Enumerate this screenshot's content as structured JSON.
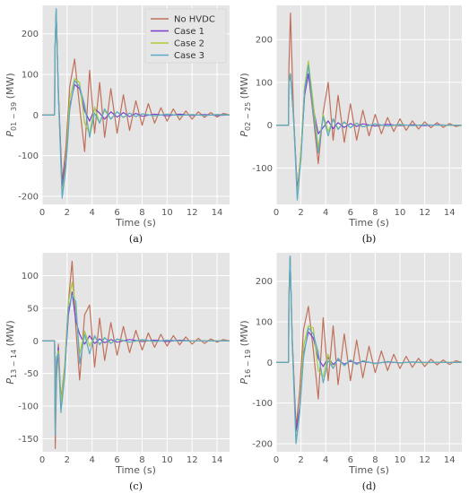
{
  "colors": {
    "No HVDC": "#c0705a",
    "Case 1": "#7a3fd0",
    "Case 2": "#a8cc3a",
    "Case 3": "#5aaac8",
    "plot_bg": "#e5e5e5",
    "grid": "#ffffff"
  },
  "chart_data": [
    {
      "type": "line",
      "caption": "(a)",
      "xlabel": "Time (s)",
      "ylabel_main": "P",
      "ylabel_sub": "01 − 39",
      "ylabel_unit": " (MW)",
      "xlim": [
        0,
        15
      ],
      "ylim": [
        -220,
        270
      ],
      "xticks": [
        0,
        2,
        4,
        6,
        8,
        10,
        12,
        14
      ],
      "yticks": [
        -200,
        -100,
        0,
        100,
        200
      ],
      "legend": {
        "position": "top-right",
        "entries": [
          "No HVDC",
          "Case 1",
          "Case 2",
          "Case 3"
        ]
      },
      "series": [
        {
          "name": "No HVDC",
          "x": [
            0,
            1,
            1.02,
            1.12,
            1.3,
            1.6,
            1.9,
            2.2,
            2.6,
            3.0,
            3.4,
            3.8,
            4.2,
            4.6,
            5.0,
            5.5,
            6.0,
            6.5,
            7.0,
            7.5,
            8.0,
            8.5,
            9.0,
            9.5,
            10.0,
            10.5,
            11.0,
            11.5,
            12.0,
            12.5,
            13.0,
            13.5,
            14.0,
            14.5,
            15.0
          ],
          "y": [
            0,
            0,
            150,
            258,
            60,
            -165,
            -80,
            70,
            138,
            20,
            -90,
            110,
            -45,
            80,
            -55,
            65,
            -45,
            50,
            -38,
            35,
            -25,
            28,
            -20,
            18,
            -15,
            15,
            -12,
            10,
            -10,
            8,
            -6,
            6,
            -5,
            4,
            0
          ]
        },
        {
          "name": "Case 1",
          "x": [
            0,
            1,
            1.02,
            1.12,
            1.3,
            1.6,
            1.9,
            2.2,
            2.6,
            3.0,
            3.4,
            3.8,
            4.2,
            4.6,
            5.0,
            5.5,
            6.0,
            6.5,
            7.0,
            7.5,
            8.0,
            9.0,
            10.0,
            11.0,
            12.0,
            13.0,
            14.0,
            15.0
          ],
          "y": [
            0,
            0,
            150,
            258,
            50,
            -175,
            -110,
            20,
            75,
            65,
            10,
            -15,
            15,
            5,
            -10,
            8,
            -5,
            6,
            -4,
            4,
            -3,
            2,
            -2,
            2,
            -1,
            1,
            -1,
            0
          ]
        },
        {
          "name": "Case 2",
          "x": [
            0,
            1,
            1.02,
            1.12,
            1.3,
            1.6,
            1.9,
            2.2,
            2.6,
            3.0,
            3.4,
            3.8,
            4.2,
            4.6,
            5.0,
            5.5,
            6.0,
            6.5,
            7.0,
            7.5,
            8.0,
            9.0,
            10.0,
            11.0,
            12.0,
            13.0,
            14.0,
            15.0
          ],
          "y": [
            0,
            0,
            150,
            258,
            50,
            -195,
            -120,
            40,
            90,
            80,
            -20,
            -45,
            20,
            -20,
            12,
            -10,
            8,
            -6,
            5,
            -4,
            3,
            -2,
            2,
            -1,
            1,
            -1,
            1,
            0
          ]
        },
        {
          "name": "Case 3",
          "x": [
            0,
            1,
            1.02,
            1.12,
            1.3,
            1.6,
            1.9,
            2.2,
            2.6,
            3.0,
            3.4,
            3.8,
            4.2,
            4.6,
            5.0,
            5.5,
            6.0,
            6.5,
            7.0,
            7.5,
            8.0,
            9.0,
            10.0,
            11.0,
            12.0,
            13.0,
            14.0,
            15.0
          ],
          "y": [
            0,
            0,
            150,
            262,
            50,
            -205,
            -130,
            10,
            85,
            70,
            25,
            -55,
            5,
            -20,
            15,
            -10,
            8,
            -6,
            5,
            -4,
            3,
            -2,
            2,
            -1,
            1,
            -1,
            1,
            0
          ]
        }
      ]
    },
    {
      "type": "line",
      "caption": "(b)",
      "xlabel": "Time (s)",
      "ylabel_main": "P",
      "ylabel_sub": "02 − 25",
      "ylabel_unit": " (MW)",
      "xlim": [
        0,
        15
      ],
      "ylim": [
        -185,
        280
      ],
      "xticks": [
        0,
        2,
        4,
        6,
        8,
        10,
        12,
        14
      ],
      "yticks": [
        -100,
        0,
        100,
        200
      ],
      "series": [
        {
          "name": "No HVDC",
          "x": [
            0,
            1,
            1.02,
            1.15,
            1.4,
            1.7,
            2.0,
            2.3,
            2.6,
            3.0,
            3.4,
            3.8,
            4.2,
            4.6,
            5.0,
            5.5,
            6.0,
            6.5,
            7.0,
            7.5,
            8.0,
            8.5,
            9.0,
            9.5,
            10.0,
            10.5,
            11.0,
            11.5,
            12.0,
            12.5,
            13.0,
            13.5,
            14.0,
            14.5,
            15.0
          ],
          "y": [
            0,
            0,
            130,
            262,
            30,
            -160,
            -60,
            90,
            120,
            20,
            -90,
            30,
            100,
            -35,
            70,
            -40,
            50,
            -35,
            35,
            -25,
            25,
            -20,
            18,
            -15,
            15,
            -12,
            10,
            -9,
            8,
            -6,
            6,
            -5,
            4,
            -3,
            0
          ]
        },
        {
          "name": "Case 1",
          "x": [
            0,
            1,
            1.02,
            1.15,
            1.4,
            1.7,
            2.0,
            2.3,
            2.6,
            3.0,
            3.4,
            3.8,
            4.2,
            4.6,
            5.0,
            5.5,
            6.0,
            6.5,
            7.0,
            8.0,
            9.0,
            10.0,
            11.0,
            12.0,
            13.0,
            14.0,
            15.0
          ],
          "y": [
            0,
            0,
            100,
            120,
            20,
            -150,
            -70,
            70,
            120,
            40,
            -20,
            -5,
            10,
            -8,
            6,
            -5,
            4,
            -3,
            3,
            -2,
            2,
            -1,
            1,
            -1,
            1,
            0,
            0
          ]
        },
        {
          "name": "Case 2",
          "x": [
            0,
            1,
            1.02,
            1.15,
            1.4,
            1.7,
            2.0,
            2.3,
            2.6,
            3.0,
            3.4,
            3.8,
            4.2,
            4.6,
            5.0,
            5.5,
            6.0,
            6.5,
            7.0,
            8.0,
            9.0,
            10.0,
            11.0,
            12.0,
            13.0,
            14.0,
            15.0
          ],
          "y": [
            0,
            0,
            100,
            120,
            20,
            -165,
            -60,
            90,
            150,
            50,
            -55,
            25,
            -15,
            12,
            -8,
            6,
            -5,
            4,
            -3,
            2,
            -2,
            1,
            -1,
            1,
            0,
            0,
            0
          ]
        },
        {
          "name": "Case 3",
          "x": [
            0,
            1,
            1.02,
            1.15,
            1.4,
            1.7,
            2.0,
            2.3,
            2.6,
            3.0,
            3.4,
            3.8,
            4.2,
            4.6,
            5.0,
            5.5,
            6.0,
            6.5,
            7.0,
            8.0,
            9.0,
            10.0,
            11.0,
            12.0,
            13.0,
            14.0,
            15.0
          ],
          "y": [
            0,
            0,
            100,
            120,
            20,
            -175,
            -80,
            80,
            140,
            30,
            -65,
            20,
            -25,
            15,
            -10,
            8,
            -6,
            5,
            -4,
            3,
            -2,
            2,
            -1,
            1,
            0,
            0,
            0
          ]
        }
      ]
    },
    {
      "type": "line",
      "caption": "(c)",
      "xlabel": "Time (s)",
      "ylabel_main": "P",
      "ylabel_sub": "13 − 14",
      "ylabel_unit": " (MW)",
      "xlim": [
        0,
        15
      ],
      "ylim": [
        -170,
        135
      ],
      "xticks": [
        0,
        2,
        4,
        6,
        8,
        10,
        12,
        14
      ],
      "yticks": [
        -150,
        -100,
        -50,
        0,
        50,
        100
      ],
      "series": [
        {
          "name": "No HVDC",
          "x": [
            0,
            1,
            1.05,
            1.15,
            1.3,
            1.5,
            1.8,
            2.1,
            2.4,
            2.7,
            3.0,
            3.4,
            3.8,
            4.2,
            4.6,
            5.0,
            5.5,
            6.0,
            6.5,
            7.0,
            7.5,
            8.0,
            8.5,
            9.0,
            9.5,
            10.0,
            10.5,
            11.0,
            11.5,
            12.0,
            12.5,
            13.0,
            13.5,
            14.0,
            14.5,
            15.0
          ],
          "y": [
            0,
            0,
            -165,
            -60,
            -5,
            -90,
            -40,
            60,
            122,
            20,
            -60,
            40,
            55,
            -40,
            35,
            -30,
            28,
            -22,
            22,
            -18,
            16,
            -14,
            12,
            -10,
            10,
            -8,
            8,
            -6,
            6,
            -5,
            4,
            -4,
            3,
            -2,
            2,
            0
          ]
        },
        {
          "name": "Case 1",
          "x": [
            0,
            1,
            1.05,
            1.15,
            1.3,
            1.5,
            1.8,
            2.1,
            2.4,
            2.7,
            3.0,
            3.4,
            3.8,
            4.2,
            4.6,
            5.0,
            5.5,
            6.0,
            7.0,
            8.0,
            9.0,
            10.0,
            11.0,
            12.0,
            13.0,
            14.0,
            15.0
          ],
          "y": [
            0,
            0,
            -130,
            -40,
            -10,
            -100,
            -50,
            40,
            75,
            30,
            10,
            -5,
            8,
            -4,
            3,
            -3,
            2,
            -2,
            2,
            -1,
            1,
            -1,
            1,
            0,
            0,
            0,
            0
          ]
        },
        {
          "name": "Case 2",
          "x": [
            0,
            1,
            1.05,
            1.15,
            1.3,
            1.5,
            1.8,
            2.1,
            2.4,
            2.7,
            3.0,
            3.4,
            3.8,
            4.2,
            4.6,
            5.0,
            5.5,
            6.0,
            7.0,
            8.0,
            9.0,
            10.0,
            11.0,
            12.0,
            13.0,
            14.0,
            15.0
          ],
          "y": [
            0,
            0,
            -140,
            -30,
            -15,
            -95,
            -45,
            60,
            90,
            50,
            -20,
            15,
            -8,
            6,
            -5,
            4,
            -3,
            2,
            -2,
            1,
            -1,
            1,
            0,
            0,
            0,
            0,
            0
          ]
        },
        {
          "name": "Case 3",
          "x": [
            0,
            1,
            1.05,
            1.15,
            1.3,
            1.5,
            1.8,
            2.1,
            2.4,
            2.7,
            3.0,
            3.4,
            3.8,
            4.2,
            4.6,
            5.0,
            5.5,
            6.0,
            7.0,
            8.0,
            9.0,
            10.0,
            11.0,
            12.0,
            13.0,
            14.0,
            15.0
          ],
          "y": [
            0,
            0,
            -145,
            -25,
            -20,
            -110,
            -55,
            50,
            70,
            60,
            -35,
            10,
            -20,
            8,
            -6,
            5,
            -4,
            3,
            -2,
            2,
            -1,
            1,
            0,
            0,
            0,
            0,
            0
          ]
        }
      ]
    },
    {
      "type": "line",
      "caption": "(d)",
      "xlabel": "Time (s)",
      "ylabel_main": "P",
      "ylabel_sub": "16 − 19",
      "ylabel_unit": " (MW)",
      "xlim": [
        0,
        15
      ],
      "ylim": [
        -220,
        270
      ],
      "xticks": [
        0,
        2,
        4,
        6,
        8,
        10,
        12,
        14
      ],
      "yticks": [
        -200,
        -100,
        0,
        100,
        200
      ],
      "series": [
        {
          "name": "No HVDC",
          "x": [
            0,
            1,
            1.02,
            1.12,
            1.3,
            1.6,
            1.9,
            2.2,
            2.6,
            3.0,
            3.4,
            3.8,
            4.2,
            4.6,
            5.0,
            5.5,
            6.0,
            6.5,
            7.0,
            7.5,
            8.0,
            8.5,
            9.0,
            9.5,
            10.0,
            10.5,
            11.0,
            11.5,
            12.0,
            12.5,
            13.0,
            13.5,
            14.0,
            14.5,
            15.0
          ],
          "y": [
            0,
            0,
            150,
            262,
            60,
            -160,
            -70,
            80,
            138,
            30,
            -90,
            110,
            -45,
            90,
            -55,
            70,
            -45,
            55,
            -38,
            40,
            -25,
            28,
            -20,
            20,
            -15,
            15,
            -12,
            10,
            -10,
            8,
            -6,
            6,
            -5,
            4,
            0
          ]
        },
        {
          "name": "Case 1",
          "x": [
            0,
            1,
            1.02,
            1.12,
            1.3,
            1.6,
            1.9,
            2.2,
            2.6,
            3.0,
            3.4,
            3.8,
            4.2,
            4.6,
            5.0,
            5.5,
            6.0,
            6.5,
            7.0,
            8.0,
            9.0,
            10.0,
            11.0,
            12.0,
            13.0,
            14.0,
            15.0
          ],
          "y": [
            0,
            0,
            150,
            258,
            50,
            -170,
            -110,
            20,
            75,
            60,
            10,
            -10,
            12,
            -5,
            6,
            -4,
            3,
            -2,
            2,
            -2,
            1,
            -1,
            1,
            0,
            0,
            0,
            0
          ]
        },
        {
          "name": "Case 2",
          "x": [
            0,
            1,
            1.02,
            1.12,
            1.3,
            1.6,
            1.9,
            2.2,
            2.6,
            3.0,
            3.4,
            3.8,
            4.2,
            4.6,
            5.0,
            5.5,
            6.0,
            6.5,
            7.0,
            8.0,
            9.0,
            10.0,
            11.0,
            12.0,
            13.0,
            14.0,
            15.0
          ],
          "y": [
            0,
            0,
            150,
            258,
            50,
            -195,
            -120,
            40,
            90,
            85,
            -20,
            -35,
            20,
            -15,
            10,
            -8,
            6,
            -5,
            4,
            -3,
            2,
            -1,
            1,
            -1,
            0,
            0,
            0
          ]
        },
        {
          "name": "Case 3",
          "x": [
            0,
            1,
            1.02,
            1.12,
            1.3,
            1.6,
            1.9,
            2.2,
            2.6,
            3.0,
            3.4,
            3.8,
            4.2,
            4.6,
            5.0,
            5.5,
            6.0,
            6.5,
            7.0,
            8.0,
            9.0,
            10.0,
            11.0,
            12.0,
            13.0,
            14.0,
            15.0
          ],
          "y": [
            0,
            0,
            150,
            262,
            50,
            -200,
            -125,
            10,
            85,
            70,
            25,
            -50,
            5,
            -15,
            10,
            -8,
            6,
            -5,
            4,
            -3,
            2,
            -1,
            1,
            0,
            0,
            0,
            0
          ]
        }
      ]
    }
  ]
}
